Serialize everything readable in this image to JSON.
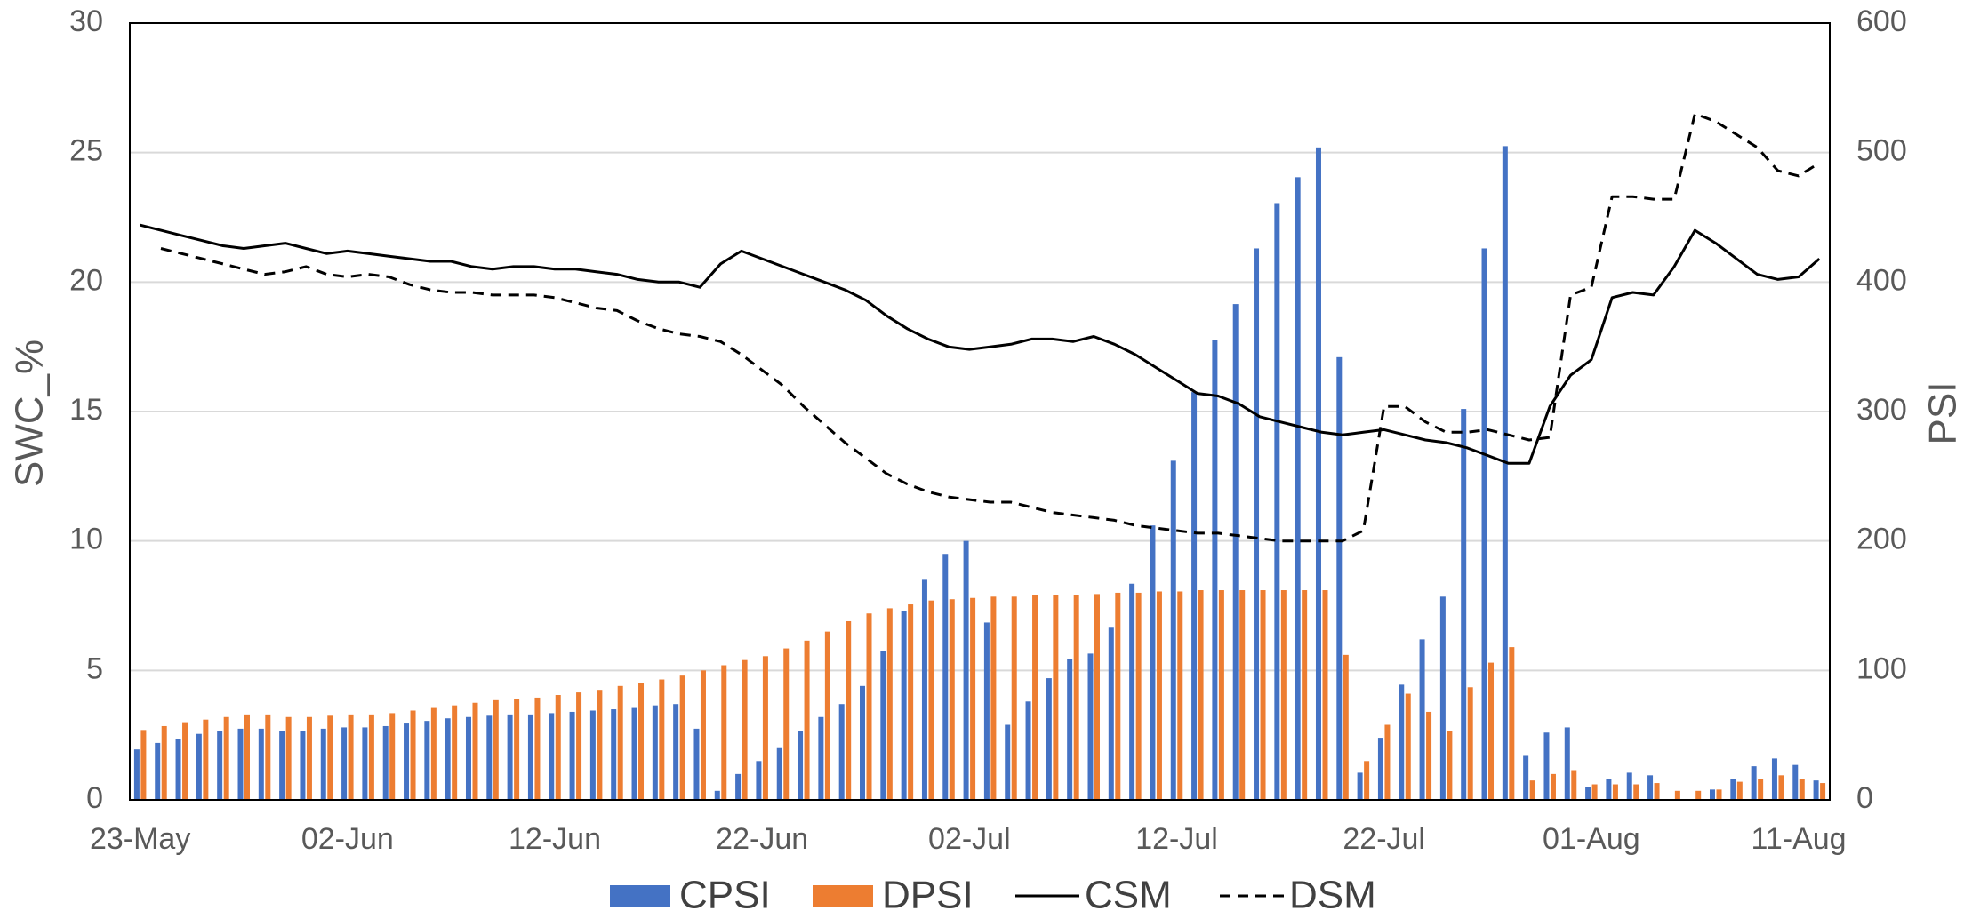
{
  "chart_data": {
    "type": "bar",
    "ylabel": "SWC_%",
    "y2label": "PSI",
    "ylim": [
      0,
      30
    ],
    "yticks": [
      0,
      5,
      10,
      15,
      20,
      25,
      30
    ],
    "y2lim": [
      0,
      600
    ],
    "y2ticks": [
      0,
      100,
      200,
      300,
      400,
      500,
      600
    ],
    "grid": true,
    "legend": "bottom",
    "categories": [
      "23-May",
      null,
      null,
      null,
      null,
      null,
      null,
      null,
      null,
      null,
      "02-Jun",
      null,
      null,
      null,
      null,
      null,
      null,
      null,
      null,
      null,
      "12-Jun",
      null,
      null,
      null,
      null,
      null,
      null,
      null,
      null,
      null,
      "22-Jun",
      null,
      null,
      null,
      null,
      null,
      null,
      null,
      null,
      null,
      "02-Jul",
      null,
      null,
      null,
      null,
      null,
      null,
      null,
      null,
      null,
      "12-Jul",
      null,
      null,
      null,
      null,
      null,
      null,
      null,
      null,
      null,
      "22-Jul",
      null,
      null,
      null,
      null,
      null,
      null,
      null,
      null,
      null,
      "01-Aug",
      null,
      null,
      null,
      null,
      null,
      null,
      null,
      null,
      null,
      "11-Aug",
      null
    ],
    "series": [
      {
        "name": "CPSI",
        "type": "bar",
        "axis": "y2",
        "color": "#4472c4",
        "values": [
          39,
          44,
          47,
          51,
          53,
          55,
          55,
          53,
          53,
          55,
          56,
          56,
          57,
          59,
          61,
          63,
          64,
          65,
          66,
          66,
          67,
          68,
          69,
          70,
          71,
          73,
          74,
          55,
          7,
          20,
          30,
          40,
          53,
          64,
          74,
          88,
          115,
          146,
          170,
          190,
          200,
          137,
          58,
          76,
          94,
          109,
          113,
          133,
          167,
          212,
          262,
          315,
          355,
          383,
          426,
          461,
          481,
          504,
          342,
          21,
          48,
          89,
          124,
          157,
          302,
          426,
          505,
          34,
          52,
          56,
          10,
          16,
          21,
          19,
          0,
          0,
          8,
          16,
          26,
          32,
          27,
          15
        ]
      },
      {
        "name": "DPSI",
        "type": "bar",
        "axis": "y2",
        "color": "#ed7d31",
        "values": [
          54,
          57,
          60,
          62,
          64,
          66,
          66,
          64,
          64,
          65,
          66,
          66,
          67,
          69,
          71,
          73,
          75,
          77,
          78,
          79,
          81,
          83,
          85,
          88,
          90,
          93,
          96,
          100,
          104,
          108,
          111,
          117,
          123,
          130,
          138,
          144,
          148,
          151,
          154,
          155,
          156,
          157,
          157,
          158,
          158,
          158,
          159,
          160,
          160,
          161,
          161,
          162,
          162,
          162,
          162,
          162,
          162,
          162,
          112,
          30,
          58,
          82,
          68,
          53,
          87,
          106,
          118,
          15,
          20,
          23,
          12,
          12,
          12,
          13,
          7,
          7,
          8,
          14,
          16,
          19,
          16,
          13
        ]
      },
      {
        "name": "CSM",
        "type": "line",
        "color": "#000000",
        "dash": "solid",
        "values": [
          22.2,
          22.0,
          21.8,
          21.6,
          21.4,
          21.3,
          21.4,
          21.5,
          21.3,
          21.1,
          21.2,
          21.1,
          21.0,
          20.9,
          20.8,
          20.8,
          20.6,
          20.5,
          20.6,
          20.6,
          20.5,
          20.5,
          20.4,
          20.3,
          20.1,
          20.0,
          20.0,
          19.8,
          20.7,
          21.2,
          20.9,
          20.6,
          20.3,
          20.0,
          19.7,
          19.3,
          18.7,
          18.2,
          17.8,
          17.5,
          17.4,
          17.5,
          17.6,
          17.8,
          17.8,
          17.7,
          17.9,
          17.6,
          17.2,
          16.7,
          16.2,
          15.7,
          15.6,
          15.3,
          14.8,
          14.6,
          14.4,
          14.2,
          14.1,
          14.2,
          14.3,
          14.1,
          13.9,
          13.8,
          13.6,
          13.3,
          13.0,
          13.0,
          15.2,
          16.4,
          17.0,
          19.4,
          19.6,
          19.5,
          20.6,
          22.0,
          21.5,
          20.9,
          20.3,
          20.1,
          20.2,
          20.9
        ]
      },
      {
        "name": "DSM",
        "type": "line",
        "color": "#000000",
        "dash": "dashed",
        "values": [
          null,
          21.3,
          21.1,
          20.9,
          20.7,
          20.5,
          20.3,
          20.4,
          20.6,
          20.3,
          20.2,
          20.3,
          20.2,
          19.9,
          19.7,
          19.6,
          19.6,
          19.5,
          19.5,
          19.5,
          19.4,
          19.2,
          19.0,
          18.9,
          18.5,
          18.2,
          18.0,
          17.9,
          17.7,
          17.2,
          16.6,
          16.0,
          15.2,
          14.5,
          13.8,
          13.2,
          12.6,
          12.2,
          11.9,
          11.7,
          11.6,
          11.5,
          11.5,
          11.3,
          11.1,
          11.0,
          10.9,
          10.8,
          10.6,
          10.5,
          10.4,
          10.3,
          10.3,
          10.2,
          10.1,
          10.0,
          10.0,
          10.0,
          10.0,
          10.4,
          15.2,
          15.2,
          14.6,
          14.2,
          14.2,
          14.3,
          14.1,
          13.9,
          14.0,
          19.5,
          19.8,
          23.3,
          23.3,
          23.2,
          23.2,
          26.5,
          26.2,
          25.7,
          25.2,
          24.3,
          24.1,
          24.6
        ]
      }
    ]
  }
}
